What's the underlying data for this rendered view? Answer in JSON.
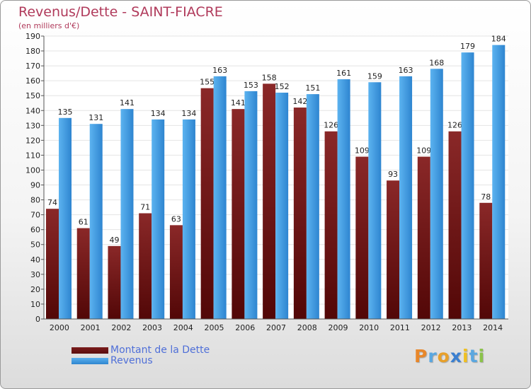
{
  "header": {
    "title": "Revenus/Dette - SAINT-FIACRE",
    "subtitle": "(en milliers d'€)"
  },
  "legend": {
    "debt_label": "Montant de la Dette",
    "revenue_label": "Revenus"
  },
  "logo": {
    "text": "Proxiti",
    "letters": [
      "P",
      "r",
      "o",
      "x",
      "i",
      "t",
      "i"
    ],
    "letter_colors": [
      "#e8872a",
      "#5aa7e0",
      "#e8a02a",
      "#3a7fd0",
      "#f0c020",
      "#5aa7e0",
      "#8bc34a"
    ]
  },
  "colors": {
    "debt": "#6e1414",
    "revenue": "#3d9be6",
    "axis_text": "#222222",
    "grid": "#e4e4e4"
  },
  "chart_data": {
    "type": "bar",
    "title": "Revenus/Dette - SAINT-FIACRE",
    "subtitle": "(en milliers d'€)",
    "categories": [
      "2000",
      "2001",
      "2002",
      "2003",
      "2004",
      "2005",
      "2006",
      "2007",
      "2008",
      "2009",
      "2010",
      "2011",
      "2012",
      "2013",
      "2014"
    ],
    "series": [
      {
        "name": "Montant de la Dette",
        "values": [
          74,
          61,
          49,
          71,
          63,
          155,
          141,
          158,
          142,
          126,
          109,
          93,
          109,
          126,
          78
        ]
      },
      {
        "name": "Revenus",
        "values": [
          135,
          131,
          141,
          134,
          134,
          163,
          153,
          152,
          151,
          161,
          159,
          163,
          168,
          179,
          184
        ]
      }
    ],
    "ylim": [
      0,
      190
    ],
    "ytick_step": 10,
    "grid": true,
    "legend_position": "bottom-left"
  }
}
